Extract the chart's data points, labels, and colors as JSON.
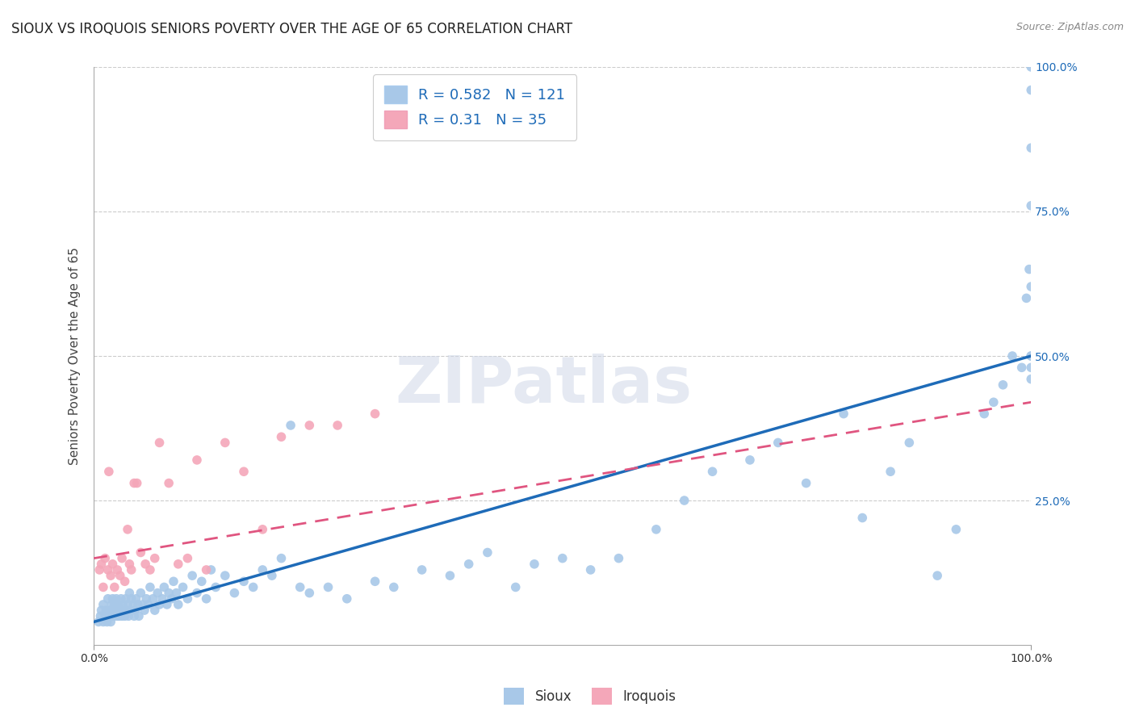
{
  "title": "SIOUX VS IROQUOIS SENIORS POVERTY OVER THE AGE OF 65 CORRELATION CHART",
  "source": "Source: ZipAtlas.com",
  "ylabel": "Seniors Poverty Over the Age of 65",
  "xlabel": "",
  "legend_sioux_label": "Sioux",
  "legend_iroquois_label": "Iroquois",
  "sioux_R": 0.582,
  "sioux_N": 121,
  "iroquois_R": 0.31,
  "iroquois_N": 35,
  "sioux_color": "#A8C8E8",
  "iroquois_color": "#F4A7B9",
  "sioux_line_color": "#1E6BB8",
  "iroquois_line_color": "#E05580",
  "xlim": [
    0,
    1.0
  ],
  "ylim": [
    0,
    1.0
  ],
  "xtick_labels": [
    "0.0%",
    "100.0%"
  ],
  "xtick_vals": [
    0.0,
    1.0
  ],
  "right_ytick_labels": [
    "25.0%",
    "50.0%",
    "75.0%",
    "100.0%"
  ],
  "right_ytick_vals": [
    0.25,
    0.5,
    0.75,
    1.0
  ],
  "watermark_text": "ZIPatlas",
  "background_color": "#ffffff",
  "grid_color": "#cccccc",
  "title_fontsize": 12,
  "axis_fontsize": 10,
  "legend_fontsize": 13,
  "marker_size": 70,
  "sioux_x": [
    0.005,
    0.007,
    0.008,
    0.01,
    0.01,
    0.012,
    0.013,
    0.014,
    0.015,
    0.015,
    0.016,
    0.017,
    0.018,
    0.019,
    0.02,
    0.02,
    0.021,
    0.022,
    0.022,
    0.023,
    0.024,
    0.025,
    0.025,
    0.026,
    0.027,
    0.028,
    0.029,
    0.03,
    0.031,
    0.032,
    0.033,
    0.034,
    0.035,
    0.036,
    0.037,
    0.038,
    0.039,
    0.04,
    0.042,
    0.043,
    0.044,
    0.045,
    0.047,
    0.048,
    0.05,
    0.052,
    0.054,
    0.056,
    0.058,
    0.06,
    0.063,
    0.065,
    0.068,
    0.07,
    0.073,
    0.075,
    0.078,
    0.08,
    0.083,
    0.085,
    0.088,
    0.09,
    0.095,
    0.1,
    0.105,
    0.11,
    0.115,
    0.12,
    0.125,
    0.13,
    0.14,
    0.15,
    0.16,
    0.17,
    0.18,
    0.19,
    0.2,
    0.21,
    0.22,
    0.23,
    0.25,
    0.27,
    0.3,
    0.32,
    0.35,
    0.38,
    0.4,
    0.42,
    0.45,
    0.47,
    0.5,
    0.53,
    0.56,
    0.6,
    0.63,
    0.66,
    0.7,
    0.73,
    0.76,
    0.8,
    0.82,
    0.85,
    0.87,
    0.9,
    0.92,
    0.95,
    0.96,
    0.97,
    0.98,
    0.99,
    0.995,
    0.998,
    1.0,
    1.0,
    1.0,
    1.0,
    1.0,
    1.0,
    1.0,
    1.0,
    1.0
  ],
  "sioux_y": [
    0.04,
    0.05,
    0.06,
    0.04,
    0.07,
    0.05,
    0.06,
    0.04,
    0.05,
    0.08,
    0.05,
    0.06,
    0.04,
    0.07,
    0.05,
    0.08,
    0.06,
    0.05,
    0.07,
    0.06,
    0.08,
    0.05,
    0.06,
    0.07,
    0.05,
    0.06,
    0.08,
    0.05,
    0.07,
    0.06,
    0.05,
    0.08,
    0.06,
    0.07,
    0.05,
    0.09,
    0.06,
    0.08,
    0.07,
    0.05,
    0.06,
    0.08,
    0.07,
    0.05,
    0.09,
    0.07,
    0.06,
    0.08,
    0.07,
    0.1,
    0.08,
    0.06,
    0.09,
    0.07,
    0.08,
    0.1,
    0.07,
    0.09,
    0.08,
    0.11,
    0.09,
    0.07,
    0.1,
    0.08,
    0.12,
    0.09,
    0.11,
    0.08,
    0.13,
    0.1,
    0.12,
    0.09,
    0.11,
    0.1,
    0.13,
    0.12,
    0.15,
    0.38,
    0.1,
    0.09,
    0.1,
    0.08,
    0.11,
    0.1,
    0.13,
    0.12,
    0.14,
    0.16,
    0.1,
    0.14,
    0.15,
    0.13,
    0.15,
    0.2,
    0.25,
    0.3,
    0.32,
    0.35,
    0.28,
    0.4,
    0.22,
    0.3,
    0.35,
    0.12,
    0.2,
    0.4,
    0.42,
    0.45,
    0.5,
    0.48,
    0.6,
    0.65,
    0.48,
    0.5,
    0.76,
    0.86,
    0.96,
    1.0,
    0.46,
    0.5,
    0.62
  ],
  "iroquois_x": [
    0.006,
    0.008,
    0.01,
    0.012,
    0.015,
    0.016,
    0.018,
    0.02,
    0.022,
    0.025,
    0.028,
    0.03,
    0.033,
    0.036,
    0.038,
    0.04,
    0.043,
    0.046,
    0.05,
    0.055,
    0.06,
    0.065,
    0.07,
    0.08,
    0.09,
    0.1,
    0.11,
    0.12,
    0.14,
    0.16,
    0.18,
    0.2,
    0.23,
    0.26,
    0.3
  ],
  "iroquois_y": [
    0.13,
    0.14,
    0.1,
    0.15,
    0.13,
    0.3,
    0.12,
    0.14,
    0.1,
    0.13,
    0.12,
    0.15,
    0.11,
    0.2,
    0.14,
    0.13,
    0.28,
    0.28,
    0.16,
    0.14,
    0.13,
    0.15,
    0.35,
    0.28,
    0.14,
    0.15,
    0.32,
    0.13,
    0.35,
    0.3,
    0.2,
    0.36,
    0.38,
    0.38,
    0.4
  ],
  "sioux_line_x0": 0.0,
  "sioux_line_y0": 0.04,
  "sioux_line_x1": 1.0,
  "sioux_line_y1": 0.5,
  "iroquois_line_x0": 0.0,
  "iroquois_line_y0": 0.15,
  "iroquois_line_x1": 1.0,
  "iroquois_line_y1": 0.42
}
